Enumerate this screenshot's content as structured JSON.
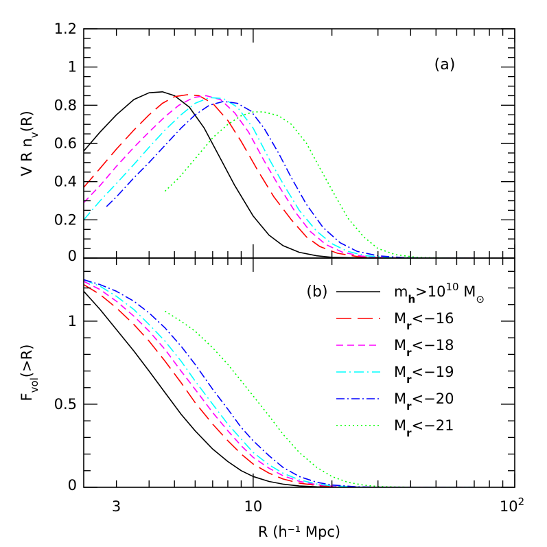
{
  "chart_data": [
    {
      "panel": "(a)",
      "type": "line",
      "xlabel": "R (h⁻¹ Mpc)",
      "ylabel_main": "V R n",
      "ylabel_sub": "v",
      "ylabel_tail": "(R)",
      "xscale": "log",
      "xlim": [
        2.25,
        100
      ],
      "ylim": [
        0,
        1.2
      ],
      "x_ticks": [
        {
          "value": 3,
          "label": "3"
        },
        {
          "value": 10,
          "label": "10"
        },
        {
          "value": 100,
          "label": "10",
          "sup": "2"
        }
      ],
      "y_ticks": [
        {
          "value": 0,
          "label": "0"
        },
        {
          "value": 0.2,
          "label": "0.2"
        },
        {
          "value": 0.4,
          "label": "0.4"
        },
        {
          "value": 0.6,
          "label": "0.6"
        },
        {
          "value": 0.8,
          "label": "0.8"
        },
        {
          "value": 1,
          "label": "1"
        },
        {
          "value": 1.2,
          "label": "1.2"
        }
      ],
      "series": [
        {
          "name": "mh>10^10 Msun",
          "color": "#000000",
          "dash": "none",
          "x": [
            2.25,
            2.6,
            3.0,
            3.5,
            4.0,
            4.5,
            5.0,
            5.7,
            6.5,
            7.5,
            8.5,
            10,
            11.5,
            13,
            15,
            17.5,
            20,
            25,
            30,
            40,
            55,
            70
          ],
          "y": [
            0.56,
            0.66,
            0.75,
            0.83,
            0.865,
            0.87,
            0.85,
            0.79,
            0.68,
            0.52,
            0.38,
            0.22,
            0.12,
            0.065,
            0.03,
            0.012,
            0.004,
            0.001,
            0.0,
            0.0,
            0.0,
            0.0
          ]
        },
        {
          "name": "Mr<-16",
          "color": "#ff0000",
          "dash": "22,9",
          "x": [
            2.25,
            2.6,
            3.0,
            3.5,
            4.0,
            4.5,
            5.0,
            5.6,
            6.2,
            7.0,
            8.0,
            9.0,
            10.5,
            12,
            14,
            16,
            18,
            21,
            25,
            30,
            40,
            55,
            70
          ],
          "y": [
            0.37,
            0.47,
            0.57,
            0.67,
            0.75,
            0.81,
            0.845,
            0.855,
            0.85,
            0.81,
            0.72,
            0.61,
            0.45,
            0.32,
            0.2,
            0.11,
            0.06,
            0.025,
            0.008,
            0.002,
            0.0,
            0.0,
            0.0
          ]
        },
        {
          "name": "Mr<-18",
          "color": "#ff00ff",
          "dash": "10,6",
          "x": [
            2.25,
            2.6,
            3.0,
            3.5,
            4.0,
            4.6,
            5.2,
            5.9,
            6.6,
            7.5,
            8.5,
            9.6,
            11,
            12.5,
            14.5,
            16.5,
            19,
            22,
            26,
            32,
            40,
            55,
            70
          ],
          "y": [
            0.29,
            0.38,
            0.48,
            0.58,
            0.66,
            0.74,
            0.8,
            0.84,
            0.85,
            0.83,
            0.76,
            0.66,
            0.51,
            0.38,
            0.24,
            0.14,
            0.07,
            0.03,
            0.01,
            0.002,
            0.0,
            0.0,
            0.0
          ]
        },
        {
          "name": "Mr<-19",
          "color": "#00ffff",
          "dash": "14,5,2,5",
          "x": [
            2.25,
            2.6,
            3.0,
            3.5,
            4.0,
            4.6,
            5.3,
            6.0,
            6.8,
            7.7,
            8.7,
            10,
            11.5,
            13,
            15,
            17.5,
            20,
            23,
            27,
            33,
            42,
            55,
            70
          ],
          "y": [
            0.2,
            0.3,
            0.39,
            0.49,
            0.58,
            0.67,
            0.75,
            0.81,
            0.84,
            0.835,
            0.79,
            0.68,
            0.52,
            0.39,
            0.25,
            0.14,
            0.075,
            0.035,
            0.012,
            0.003,
            0.0,
            0.0,
            0.0
          ]
        },
        {
          "name": "Mr<-20",
          "color": "#0000ff",
          "dash": "12,4,2,4",
          "x": [
            2.75,
            3.0,
            3.5,
            4.0,
            4.6,
            5.3,
            6.0,
            6.8,
            7.7,
            8.7,
            9.8,
            11,
            12.5,
            14,
            16,
            18.5,
            21.5,
            25,
            30,
            37,
            46,
            58,
            70
          ],
          "y": [
            0.27,
            0.32,
            0.42,
            0.5,
            0.59,
            0.68,
            0.75,
            0.8,
            0.82,
            0.81,
            0.77,
            0.68,
            0.55,
            0.42,
            0.28,
            0.16,
            0.08,
            0.035,
            0.012,
            0.003,
            0.0,
            0.0,
            0.0
          ]
        },
        {
          "name": "Mr<-21",
          "color": "#00ff00",
          "dash": "2,4",
          "x": [
            4.6,
            5.2,
            6.0,
            7.0,
            8.0,
            9.0,
            10,
            11,
            12.5,
            14,
            16,
            18,
            20.5,
            23,
            26.5,
            30,
            35,
            42,
            50,
            60,
            70
          ],
          "y": [
            0.35,
            0.42,
            0.52,
            0.63,
            0.7,
            0.745,
            0.765,
            0.765,
            0.745,
            0.7,
            0.6,
            0.47,
            0.33,
            0.21,
            0.11,
            0.05,
            0.018,
            0.004,
            0.001,
            0.0,
            0.0
          ]
        }
      ]
    },
    {
      "panel": "(b)",
      "type": "line",
      "xlabel": "R (h⁻¹ Mpc)",
      "ylabel_main": "F",
      "ylabel_sub": "vol",
      "ylabel_tail": "(>R)",
      "xscale": "log",
      "xlim": [
        2.25,
        100
      ],
      "ylim": [
        0,
        1.38
      ],
      "x_ticks": [
        {
          "value": 3,
          "label": "3"
        },
        {
          "value": 10,
          "label": "10"
        },
        {
          "value": 100,
          "label": "10",
          "sup": "2"
        }
      ],
      "y_ticks": [
        {
          "value": 0,
          "label": "0"
        },
        {
          "value": 0.5,
          "label": "0.5"
        },
        {
          "value": 1,
          "label": "1"
        }
      ],
      "series": [
        {
          "name": "mh>10^10 Msun",
          "color": "#000000",
          "dash": "none",
          "x": [
            2.25,
            2.6,
            3.0,
            3.5,
            4.0,
            4.6,
            5.3,
            6.0,
            7.0,
            8.0,
            9.0,
            10,
            11.5,
            13,
            15,
            17.5,
            20,
            25,
            30,
            40,
            55,
            70
          ],
          "y": [
            1.18,
            1.07,
            0.95,
            0.82,
            0.7,
            0.57,
            0.44,
            0.34,
            0.23,
            0.155,
            0.1,
            0.065,
            0.035,
            0.019,
            0.008,
            0.003,
            0.001,
            0.0,
            0.0,
            0.0,
            0.0,
            0.0
          ]
        },
        {
          "name": "Mr<-16",
          "color": "#ff0000",
          "dash": "22,9",
          "x": [
            2.25,
            2.6,
            3.0,
            3.5,
            4.0,
            4.6,
            5.3,
            6.0,
            7.0,
            8.0,
            9.0,
            10,
            11.5,
            13,
            15,
            17.5,
            20,
            25,
            30,
            40,
            55,
            70
          ],
          "y": [
            1.22,
            1.16,
            1.08,
            0.98,
            0.88,
            0.76,
            0.63,
            0.51,
            0.38,
            0.28,
            0.2,
            0.14,
            0.085,
            0.05,
            0.025,
            0.011,
            0.005,
            0.001,
            0.0,
            0.0,
            0.0,
            0.0
          ]
        },
        {
          "name": "Mr<-18",
          "color": "#ff00ff",
          "dash": "10,6",
          "x": [
            2.25,
            2.6,
            3.0,
            3.5,
            4.0,
            4.6,
            5.3,
            6.0,
            7.0,
            8.0,
            9.0,
            10,
            11.5,
            13,
            15,
            17.5,
            20,
            25,
            30,
            40,
            55,
            70
          ],
          "y": [
            1.24,
            1.19,
            1.12,
            1.03,
            0.94,
            0.83,
            0.7,
            0.59,
            0.45,
            0.34,
            0.25,
            0.18,
            0.115,
            0.07,
            0.036,
            0.016,
            0.007,
            0.002,
            0.0,
            0.0,
            0.0,
            0.0
          ]
        },
        {
          "name": "Mr<-19",
          "color": "#00ffff",
          "dash": "14,5,2,5",
          "x": [
            2.25,
            2.6,
            3.0,
            3.5,
            4.0,
            4.6,
            5.3,
            6.0,
            7.0,
            8.0,
            9.0,
            10,
            11.5,
            13,
            15,
            17.5,
            20,
            25,
            30,
            40,
            55,
            70
          ],
          "y": [
            1.25,
            1.21,
            1.15,
            1.07,
            0.98,
            0.88,
            0.76,
            0.64,
            0.5,
            0.38,
            0.29,
            0.21,
            0.135,
            0.085,
            0.045,
            0.02,
            0.009,
            0.002,
            0.0,
            0.0,
            0.0,
            0.0
          ]
        },
        {
          "name": "Mr<-20",
          "color": "#0000ff",
          "dash": "12,4,2,4",
          "x": [
            2.25,
            2.6,
            3.0,
            3.5,
            4.0,
            4.6,
            5.3,
            6.0,
            7.0,
            8.0,
            9.0,
            10,
            11.5,
            13,
            15,
            17.5,
            20,
            25,
            30,
            40,
            55,
            70
          ],
          "y": [
            1.25,
            1.22,
            1.18,
            1.12,
            1.05,
            0.96,
            0.85,
            0.74,
            0.59,
            0.47,
            0.36,
            0.28,
            0.19,
            0.12,
            0.065,
            0.03,
            0.014,
            0.003,
            0.001,
            0.0,
            0.0,
            0.0
          ]
        },
        {
          "name": "Mr<-21",
          "color": "#00ff00",
          "dash": "2,4",
          "x": [
            4.6,
            5.3,
            6.0,
            7.0,
            8.0,
            9.0,
            10,
            11.5,
            13,
            15,
            17.5,
            20,
            23,
            26.5,
            30,
            35,
            42,
            50,
            60,
            70
          ],
          "y": [
            1.06,
            1.0,
            0.94,
            0.84,
            0.74,
            0.64,
            0.55,
            0.43,
            0.32,
            0.21,
            0.12,
            0.065,
            0.03,
            0.013,
            0.005,
            0.002,
            0.0,
            0.0,
            0.0,
            0.0
          ]
        }
      ]
    }
  ],
  "legend": [
    {
      "pre": "m",
      "sub": "h",
      "mid": ">10",
      "sup": "10",
      "post": " M",
      "sym": "⊙",
      "color": "#000000",
      "dash": "none"
    },
    {
      "pre": "M",
      "sub": "r",
      "post": "<−16",
      "color": "#ff0000",
      "dash": "22,9"
    },
    {
      "pre": "M",
      "sub": "r",
      "post": "<−18",
      "color": "#ff00ff",
      "dash": "10,6"
    },
    {
      "pre": "M",
      "sub": "r",
      "post": "<−19",
      "color": "#00ffff",
      "dash": "14,5,2,5"
    },
    {
      "pre": "M",
      "sub": "r",
      "post": "<−20",
      "color": "#0000ff",
      "dash": "12,4,2,4"
    },
    {
      "pre": "M",
      "sub": "r",
      "post": "<−21",
      "color": "#00ff00",
      "dash": "2,4"
    }
  ],
  "legend_placement": "top-right of panel (b)"
}
